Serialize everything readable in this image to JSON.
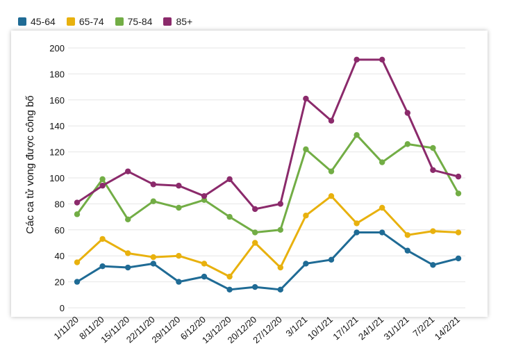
{
  "chart_data": {
    "type": "line",
    "title": "",
    "xlabel": "",
    "ylabel": "Các ca tử vong được công bố",
    "ylim": [
      0,
      200
    ],
    "yticks": [
      0,
      20,
      40,
      60,
      80,
      100,
      120,
      140,
      160,
      180,
      200
    ],
    "grid": true,
    "legend_position": "top-left",
    "categories": [
      "1/11/20",
      "8/11/20",
      "15/11/20",
      "22/11/20",
      "29/11/20",
      "6/12/20",
      "13/12/20",
      "20/12/20",
      "27/12/20",
      "3/1/21",
      "10/1/21",
      "17/1/21",
      "24/1/21",
      "31/1/21",
      "7/2/21",
      "14/2/21"
    ],
    "series": [
      {
        "name": "45-64",
        "color": "#1f6b95",
        "values": [
          20,
          32,
          31,
          34,
          20,
          24,
          14,
          16,
          14,
          34,
          37,
          58,
          58,
          44,
          33,
          38
        ]
      },
      {
        "name": "65-74",
        "color": "#e8b10e",
        "values": [
          35,
          53,
          42,
          39,
          40,
          34,
          24,
          50,
          31,
          71,
          86,
          65,
          77,
          56,
          59,
          58
        ]
      },
      {
        "name": "75-84",
        "color": "#72ad45",
        "values": [
          72,
          99,
          68,
          82,
          77,
          83,
          70,
          58,
          60,
          122,
          105,
          133,
          112,
          126,
          123,
          88
        ]
      },
      {
        "name": "85+",
        "color": "#8b2a6b",
        "values": [
          81,
          94,
          105,
          95,
          94,
          86,
          99,
          76,
          80,
          161,
          144,
          191,
          191,
          150,
          106,
          101
        ]
      }
    ]
  }
}
